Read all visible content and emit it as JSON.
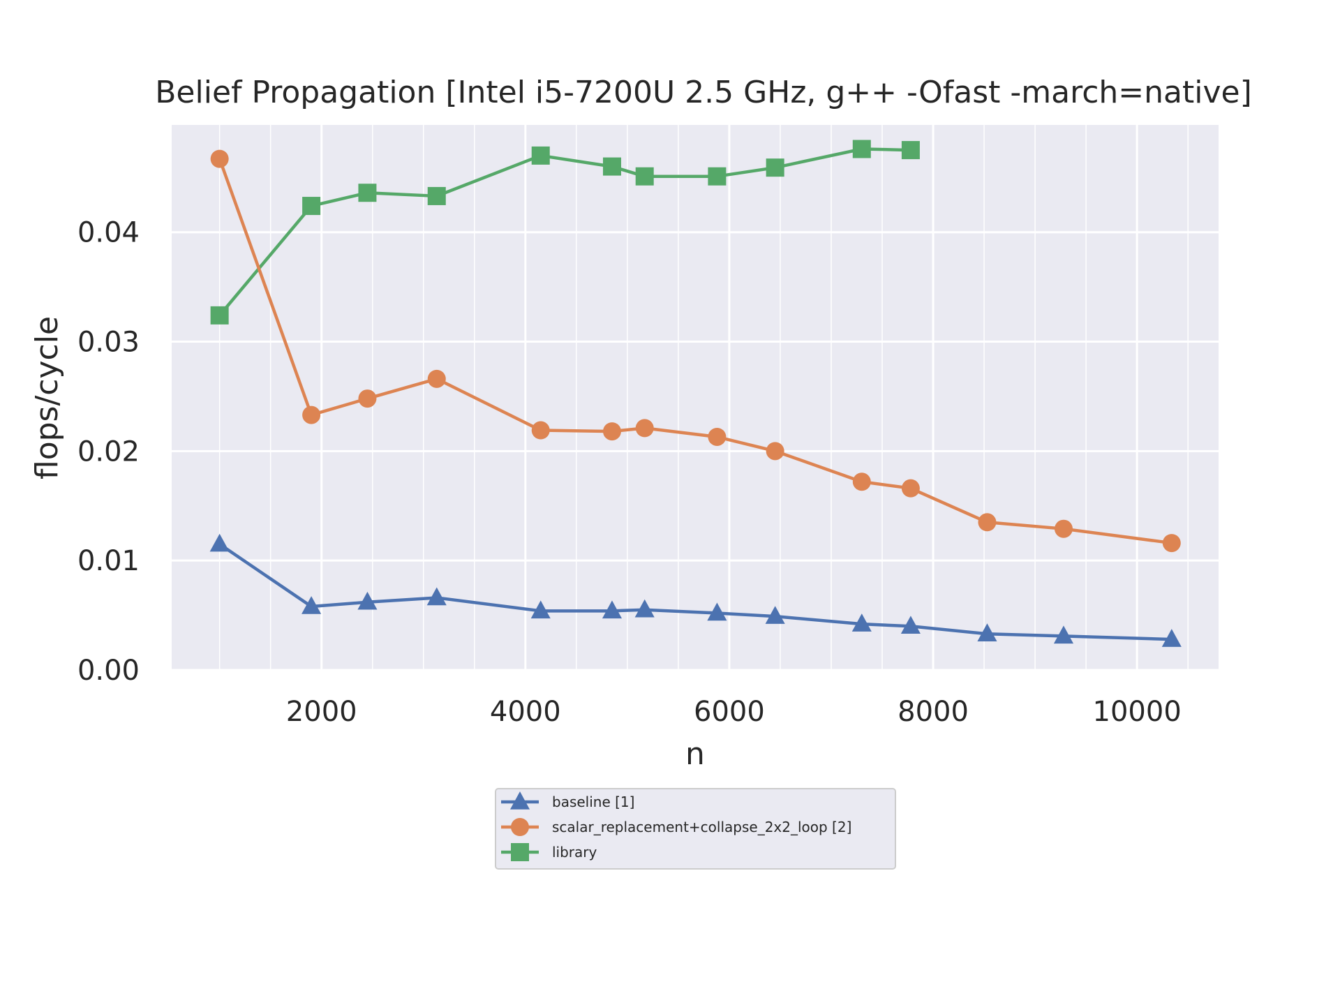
{
  "chart_data": {
    "type": "line",
    "title": "Belief Propagation [Intel i5-7200U 2.5 GHz, g++ -Ofast -march=native]",
    "xlabel": "n",
    "ylabel": "flops/cycle",
    "xlim": [
      530,
      10800
    ],
    "ylim": [
      0,
      0.0498
    ],
    "xticks": [
      2000,
      4000,
      6000,
      8000,
      10000
    ],
    "xtick_labels": [
      "2000",
      "4000",
      "6000",
      "8000",
      "10000"
    ],
    "xminor": [
      1000,
      1500,
      2500,
      3000,
      3500,
      4500,
      5000,
      5500,
      6500,
      7000,
      7500,
      8500,
      9000,
      9500,
      10500
    ],
    "yticks": [
      0,
      0.01,
      0.02,
      0.03,
      0.04
    ],
    "ytick_labels": [
      "0.00",
      "0.01",
      "0.02",
      "0.03",
      "0.04"
    ],
    "grid": true,
    "legend_position": "bottom-center (below axes)",
    "series": [
      {
        "name": "baseline [1]",
        "color": "#4c72b0",
        "marker": "triangle",
        "x": [
          1000,
          1900,
          2450,
          3130,
          4150,
          4850,
          5170,
          5880,
          6450,
          7300,
          7780,
          8530,
          9280,
          10340
        ],
        "y": [
          0.0115,
          0.0058,
          0.0062,
          0.0066,
          0.0054,
          0.0054,
          0.0055,
          0.0052,
          0.0049,
          0.0042,
          0.004,
          0.0033,
          0.0031,
          0.0028
        ]
      },
      {
        "name": "scalar_replacement+collapse_2x2_loop [2]",
        "color": "#dd8452",
        "marker": "circle",
        "x": [
          1000,
          1900,
          2450,
          3130,
          4150,
          4850,
          5170,
          5880,
          6450,
          7300,
          7780,
          8530,
          9280,
          10340
        ],
        "y": [
          0.0467,
          0.0233,
          0.0248,
          0.0266,
          0.0219,
          0.0218,
          0.0221,
          0.0213,
          0.02,
          0.0172,
          0.0166,
          0.0135,
          0.0129,
          0.0116
        ]
      },
      {
        "name": "library",
        "color": "#55a868",
        "marker": "square",
        "x": [
          1000,
          1900,
          2450,
          3130,
          4150,
          4850,
          5170,
          5880,
          6450,
          7300,
          7780
        ],
        "y": [
          0.0324,
          0.0424,
          0.0436,
          0.0433,
          0.047,
          0.046,
          0.0451,
          0.0451,
          0.0459,
          0.0476,
          0.0475
        ]
      }
    ]
  }
}
